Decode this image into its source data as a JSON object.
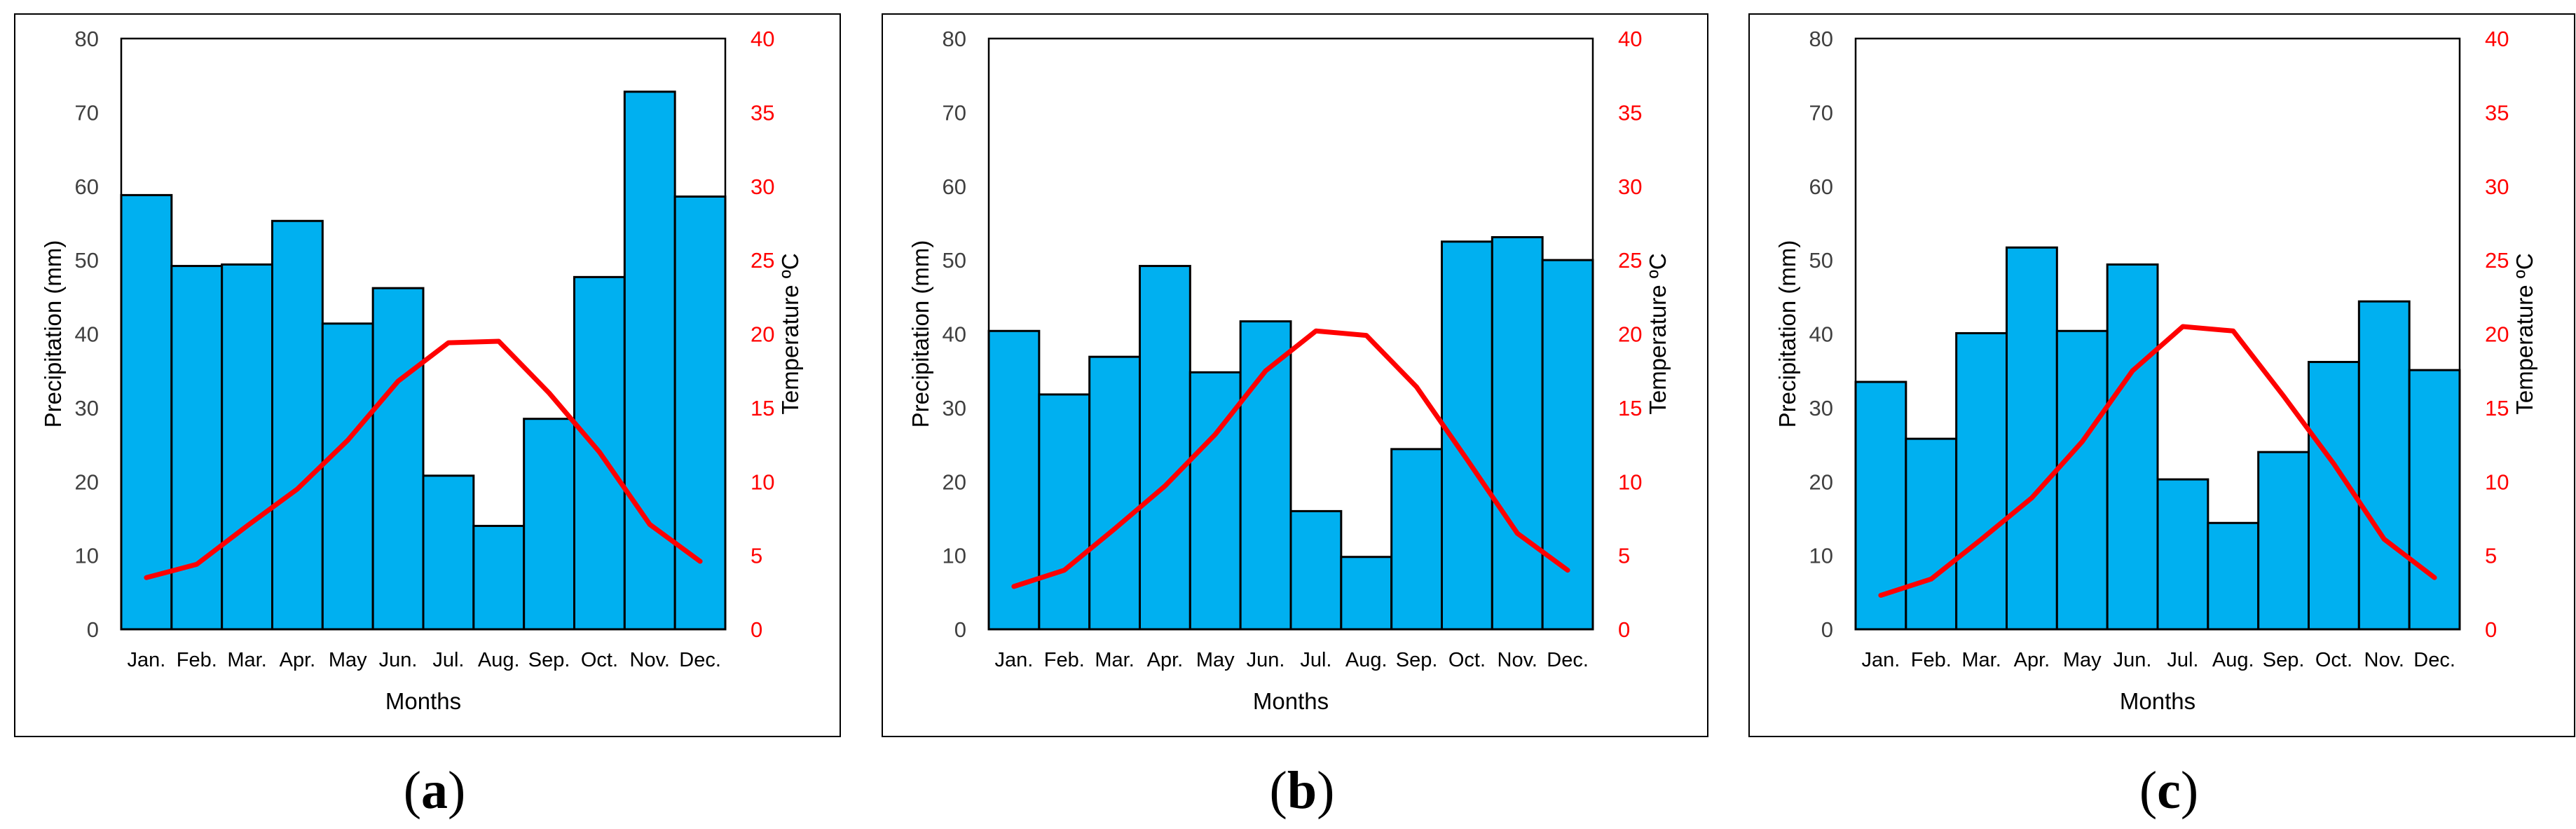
{
  "chart_data": [
    {
      "panel": "a",
      "type": "bar+line",
      "categories": [
        "Jan.",
        "Feb.",
        "Mar.",
        "Apr.",
        "May",
        "Jun.",
        "Jul.",
        "Aug.",
        "Sep.",
        "Oct.",
        "Nov.",
        "Dec."
      ],
      "series": [
        {
          "name": "Precipitation (mm)",
          "type": "bar",
          "axis": "left",
          "values": [
            58.8,
            49.2,
            49.4,
            55.3,
            41.4,
            46.2,
            20.8,
            14.0,
            28.5,
            47.7,
            72.8,
            58.6
          ]
        },
        {
          "name": "Temperature ºC",
          "type": "line",
          "axis": "right",
          "values": [
            3.5,
            4.4,
            7.0,
            9.5,
            12.8,
            16.8,
            19.4,
            19.5,
            16.0,
            12.0,
            7.1,
            4.6
          ]
        }
      ],
      "xlabel": "Months",
      "ylabel": "Precipitation (mm)",
      "y2label": "Temperature ºC",
      "ylim": [
        0,
        80
      ],
      "y2lim": [
        0,
        40
      ],
      "yticks": [
        0,
        10,
        20,
        30,
        40,
        50,
        60,
        70,
        80
      ],
      "y2ticks": [
        0,
        5,
        10,
        15,
        20,
        25,
        30,
        35,
        40
      ],
      "grid": false
    },
    {
      "panel": "b",
      "type": "bar+line",
      "categories": [
        "Jan.",
        "Feb.",
        "Mar.",
        "Apr.",
        "May",
        "Jun.",
        "Jul.",
        "Aug.",
        "Sep.",
        "Oct.",
        "Nov.",
        "Dec."
      ],
      "series": [
        {
          "name": "Precipitation (mm)",
          "type": "bar",
          "axis": "left",
          "values": [
            40.4,
            31.8,
            36.9,
            49.2,
            34.8,
            41.7,
            16.0,
            9.8,
            24.4,
            52.5,
            53.1,
            50.0
          ]
        },
        {
          "name": "Temperature ºC",
          "type": "line",
          "axis": "right",
          "values": [
            2.9,
            4.0,
            6.8,
            9.7,
            13.2,
            17.5,
            20.2,
            19.9,
            16.4,
            11.5,
            6.5,
            4.0
          ]
        }
      ],
      "xlabel": "Months",
      "ylabel": "Precipitation (mm)",
      "y2label": "Temperature ºC",
      "ylim": [
        0,
        80
      ],
      "y2lim": [
        0,
        40
      ],
      "yticks": [
        0,
        10,
        20,
        30,
        40,
        50,
        60,
        70,
        80
      ],
      "y2ticks": [
        0,
        5,
        10,
        15,
        20,
        25,
        30,
        35,
        40
      ],
      "grid": false
    },
    {
      "panel": "c",
      "type": "bar+line",
      "categories": [
        "Jan.",
        "Feb.",
        "Mar.",
        "Apr.",
        "May",
        "Jun.",
        "Jul.",
        "Aug.",
        "Sep.",
        "Oct.",
        "Nov.",
        "Dec."
      ],
      "series": [
        {
          "name": "Precipitation (mm)",
          "type": "bar",
          "axis": "left",
          "values": [
            33.5,
            25.8,
            40.1,
            51.7,
            40.4,
            49.4,
            20.3,
            14.4,
            24.0,
            36.2,
            44.4,
            35.1
          ]
        },
        {
          "name": "Temperature ºC",
          "type": "line",
          "axis": "right",
          "values": [
            2.3,
            3.4,
            6.1,
            8.9,
            12.7,
            17.5,
            20.5,
            20.2,
            15.8,
            11.2,
            6.1,
            3.5
          ]
        }
      ],
      "xlabel": "Months",
      "ylabel": "Precipitation (mm)",
      "y2label": "Temperature ºC",
      "ylim": [
        0,
        80
      ],
      "y2lim": [
        0,
        40
      ],
      "yticks": [
        0,
        10,
        20,
        30,
        40,
        50,
        60,
        70,
        80
      ],
      "y2ticks": [
        0,
        5,
        10,
        15,
        20,
        25,
        30,
        35,
        40
      ],
      "grid": false
    }
  ],
  "captions": [
    "a",
    "b",
    "c"
  ],
  "colors": {
    "bar_fill": "#00b0f0",
    "bar_stroke": "#000000",
    "line": "#ff0000",
    "axis_left_text": "#404040",
    "axis_right_text": "#ff0000"
  }
}
